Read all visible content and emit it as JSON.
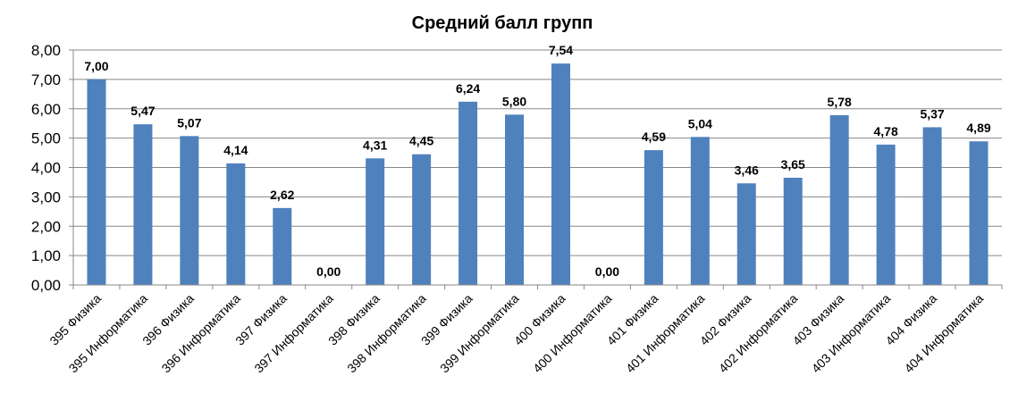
{
  "chart_data": {
    "type": "bar",
    "title": "Средний балл групп",
    "categories": [
      "395 Физика",
      "395 Информатика",
      "396 Физика",
      "396 Информатика",
      "397 Физика",
      "397 Информатика",
      "398 Физика",
      "398 Информатика",
      "399 Физика",
      "399 Информатика",
      "400 Физика",
      "400 Информатика",
      "401 Физика",
      "401 Информатика",
      "402 Физика",
      "402 Информатика",
      "403 Физика",
      "403 Информатика",
      "404 Физика",
      "404 Информатика"
    ],
    "values": [
      7.0,
      5.47,
      5.07,
      4.14,
      2.62,
      0.0,
      4.31,
      4.45,
      6.24,
      5.8,
      7.54,
      0.0,
      4.59,
      5.04,
      3.46,
      3.65,
      5.78,
      4.78,
      5.37,
      4.89
    ],
    "value_labels": [
      "7,00",
      "5,47",
      "5,07",
      "4,14",
      "2,62",
      "0,00",
      "4,31",
      "4,45",
      "6,24",
      "5,80",
      "7,54",
      "0,00",
      "4,59",
      "5,04",
      "3,46",
      "3,65",
      "5,78",
      "4,78",
      "5,37",
      "4,89"
    ],
    "yticks": [
      "0,00",
      "1,00",
      "2,00",
      "3,00",
      "4,00",
      "5,00",
      "6,00",
      "7,00",
      "8,00"
    ],
    "ylim": [
      0,
      8
    ],
    "xlabel": "",
    "ylabel": "",
    "grid": true,
    "legend": "none",
    "bar_color": "#4F81BD"
  }
}
